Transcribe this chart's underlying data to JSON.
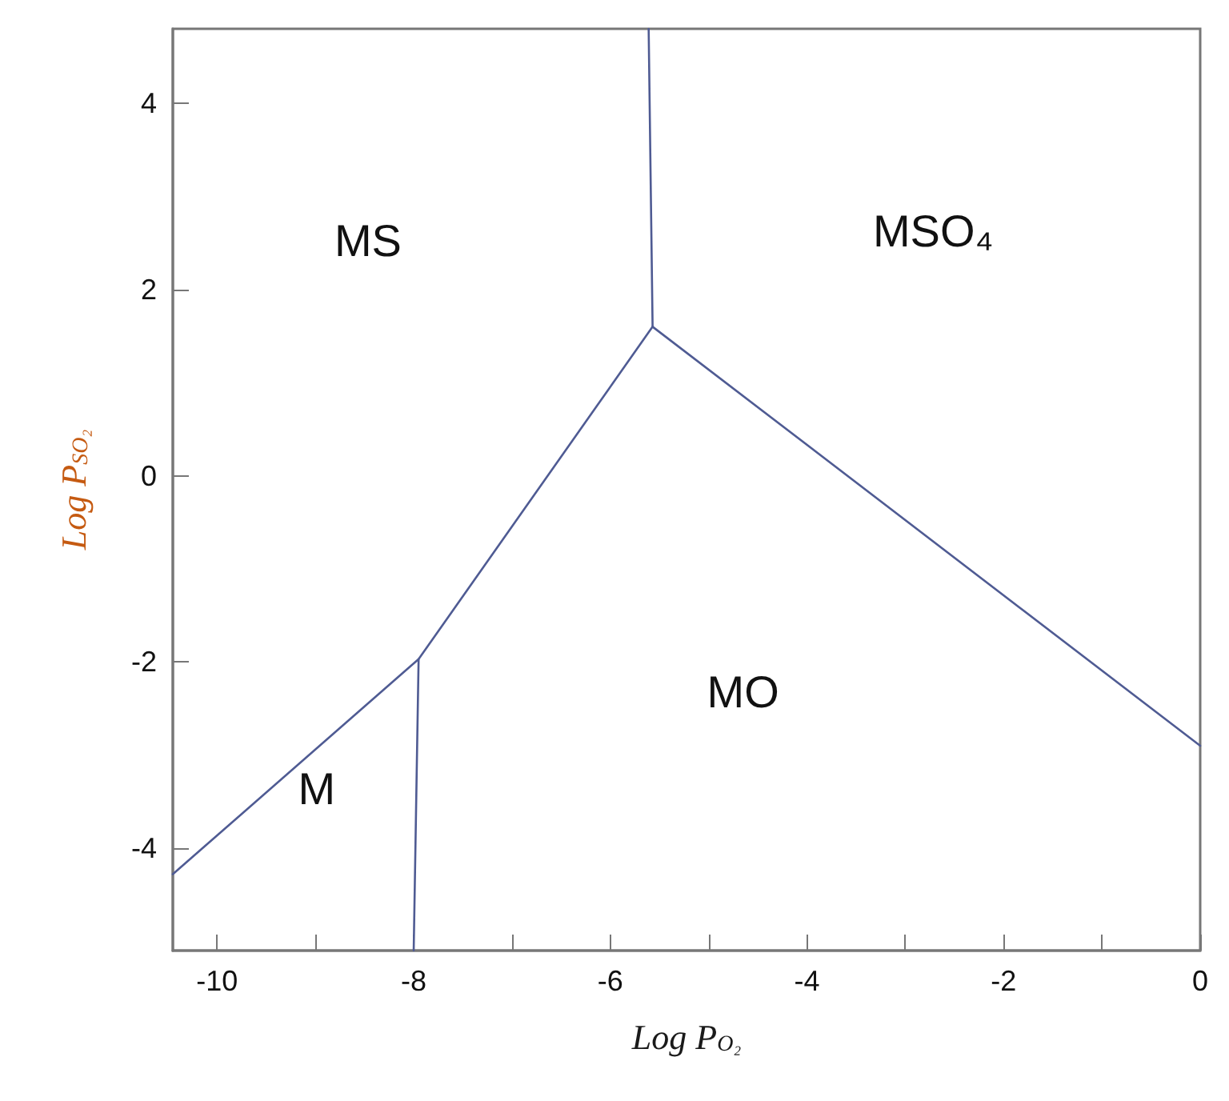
{
  "chart_data": {
    "type": "line",
    "xlabel": "Log P$_{O₂}$",
    "ylabel": "Log P$_{SO₂}$",
    "xlim": [
      -10.45,
      0
    ],
    "ylim": [
      -5.1,
      4.8
    ],
    "xticks": [
      {
        "value": -10,
        "label": "-10"
      },
      {
        "value": -9,
        "label": null
      },
      {
        "value": -8,
        "label": "-8"
      },
      {
        "value": -7,
        "label": null
      },
      {
        "value": -6,
        "label": "-6"
      },
      {
        "value": -5,
        "label": null
      },
      {
        "value": -4,
        "label": "-4"
      },
      {
        "value": -3,
        "label": null
      },
      {
        "value": -2,
        "label": "-2"
      },
      {
        "value": -1,
        "label": null
      },
      {
        "value": 0,
        "label": "0"
      }
    ],
    "yticks": [
      -4,
      -2,
      0,
      2,
      4
    ],
    "grid": false,
    "marker": "none",
    "line_style": "solid",
    "series": [
      {
        "color": "#4f5b93",
        "x": [
          -10.45,
          -7.95,
          -5.57
        ],
        "values": [
          -4.28,
          -1.97,
          1.6
        ]
      },
      {
        "color": "#4f5b93",
        "x": [
          -7.95,
          -8.0
        ],
        "values": [
          -1.97,
          -5.1
        ]
      },
      {
        "color": "#4f5b93",
        "x": [
          -5.57,
          -5.61
        ],
        "values": [
          1.6,
          4.8
        ]
      },
      {
        "color": "#4f5b93",
        "x": [
          -5.57,
          0
        ],
        "values": [
          1.6,
          -2.9
        ]
      }
    ],
    "annotations": [
      "MS",
      "MSO₄",
      "MO",
      "M"
    ]
  }
}
